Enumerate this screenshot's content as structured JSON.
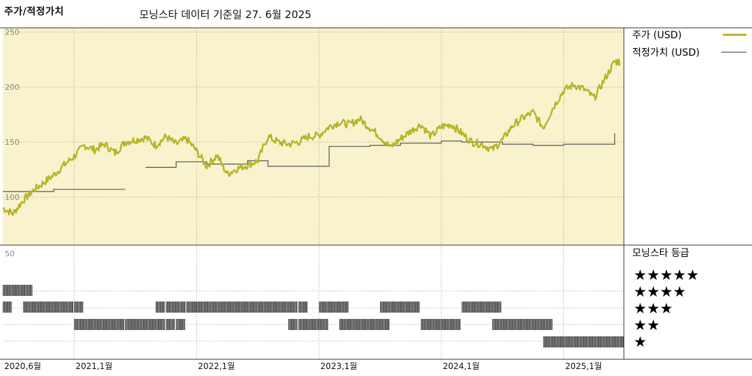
{
  "header": {
    "title": "주가/적정가치",
    "date_note": "모닝스타 데이터 기준일 27. 6월 2025"
  },
  "legend": {
    "price_label": "주가 (USD)",
    "fair_label": "적정가치 (USD)",
    "rating_title": "모닝스타 등급",
    "stars": [
      "★★★★★",
      "★★★★",
      "★★★",
      "★★",
      "★"
    ]
  },
  "colors": {
    "price_line": "#b6b42a",
    "fair_line": "#555555",
    "upper_bg": "#f8f3cc",
    "rating_bar": "#333333",
    "grid": "#888888"
  },
  "chart_data": [
    {
      "type": "line",
      "title": "",
      "xlabel": "",
      "ylabel": "",
      "ylim": [
        50,
        260
      ],
      "yticks": [
        50,
        100,
        150,
        200,
        250
      ],
      "xticks": [
        "2020,6월",
        "2021,1월",
        "2022,1월",
        "2023,1월",
        "2024,1월",
        "2025,1월"
      ],
      "series": [
        {
          "name": "주가 (USD)",
          "x": [
            "2020-06",
            "2020-07",
            "2020-08",
            "2020-09",
            "2020-10",
            "2020-11",
            "2020-12",
            "2021-01",
            "2021-02",
            "2021-03",
            "2021-04",
            "2021-05",
            "2021-06",
            "2021-07",
            "2021-08",
            "2021-09",
            "2021-10",
            "2021-11",
            "2021-12",
            "2022-01",
            "2022-02",
            "2022-03",
            "2022-04",
            "2022-05",
            "2022-06",
            "2022-07",
            "2022-08",
            "2022-09",
            "2022-10",
            "2022-11",
            "2022-12",
            "2023-01",
            "2023-02",
            "2023-03",
            "2023-04",
            "2023-05",
            "2023-06",
            "2023-07",
            "2023-08",
            "2023-09",
            "2023-10",
            "2023-11",
            "2023-12",
            "2024-01",
            "2024-02",
            "2024-03",
            "2024-04",
            "2024-05",
            "2024-06",
            "2024-07",
            "2024-08",
            "2024-09",
            "2024-10",
            "2024-11",
            "2024-12",
            "2025-01",
            "2025-02",
            "2025-03",
            "2025-04",
            "2025-05",
            "2025-06"
          ],
          "values": [
            90,
            85,
            97,
            106,
            113,
            120,
            129,
            137,
            147,
            143,
            148,
            140,
            150,
            152,
            154,
            147,
            155,
            148,
            153,
            142,
            128,
            138,
            121,
            126,
            129,
            133,
            155,
            150,
            148,
            150,
            155,
            156,
            164,
            168,
            166,
            171,
            163,
            155,
            145,
            153,
            160,
            166,
            155,
            164,
            166,
            158,
            150,
            148,
            143,
            152,
            165,
            172,
            177,
            163,
            182,
            197,
            202,
            198,
            190,
            207,
            223
          ]
        },
        {
          "name": "적정가치 (USD)",
          "x": [
            "2020-06",
            "2020-09",
            "2020-11",
            "2021-01",
            "2021-06",
            "2021-07",
            "2021-08",
            "2021-11",
            "2022-01",
            "2022-02",
            "2022-06",
            "2022-08",
            "2023-01",
            "2023-02",
            "2023-06",
            "2023-09",
            "2024-01",
            "2024-03",
            "2024-07",
            "2024-10",
            "2025-01",
            "2025-06"
          ],
          "values": [
            105,
            105,
            107,
            107,
            107,
            null,
            127,
            132,
            132,
            130,
            133,
            128,
            128,
            146,
            147,
            149,
            151,
            150,
            148,
            147,
            148,
            158
          ]
        }
      ]
    },
    {
      "type": "table",
      "title": "모닝스타 등급",
      "rows": [
        "★★★★★",
        "★★★★",
        "★★★",
        "★★",
        "★"
      ],
      "segments": [
        {
          "stars": 4,
          "from": "2020-06",
          "to": "2020-08"
        },
        {
          "stars": 3,
          "from": "2020-06",
          "to": "2020-06"
        },
        {
          "stars": 3,
          "from": "2020-08",
          "to": "2020-12"
        },
        {
          "stars": 3,
          "from": "2021-01",
          "to": "2021-01"
        },
        {
          "stars": 2,
          "from": "2021-01",
          "to": "2021-05"
        },
        {
          "stars": 2,
          "from": "2021-06",
          "to": "2021-07"
        },
        {
          "stars": 2,
          "from": "2021-07",
          "to": "2021-09"
        },
        {
          "stars": 3,
          "from": "2021-09",
          "to": "2021-09"
        },
        {
          "stars": 2,
          "from": "2021-10",
          "to": "2021-10"
        },
        {
          "stars": 3,
          "from": "2021-10",
          "to": "2021-11"
        },
        {
          "stars": 2,
          "from": "2021-11",
          "to": "2021-11"
        },
        {
          "stars": 3,
          "from": "2021-12",
          "to": "2022-01"
        },
        {
          "stars": 3,
          "from": "2022-01",
          "to": "2022-10"
        },
        {
          "stars": 2,
          "from": "2022-10",
          "to": "2022-10"
        },
        {
          "stars": 3,
          "from": "2022-11",
          "to": "2022-11"
        },
        {
          "stars": 2,
          "from": "2022-11",
          "to": "2023-01"
        },
        {
          "stars": 3,
          "from": "2023-01",
          "to": "2023-03"
        },
        {
          "stars": 2,
          "from": "2023-03",
          "to": "2023-07"
        },
        {
          "stars": 3,
          "from": "2023-07",
          "to": "2023-10"
        },
        {
          "stars": 2,
          "from": "2023-11",
          "to": "2024-02"
        },
        {
          "stars": 3,
          "from": "2024-03",
          "to": "2024-06"
        },
        {
          "stars": 2,
          "from": "2024-06",
          "to": "2024-11"
        },
        {
          "stars": 1,
          "from": "2024-11",
          "to": "2025-06"
        }
      ]
    }
  ]
}
